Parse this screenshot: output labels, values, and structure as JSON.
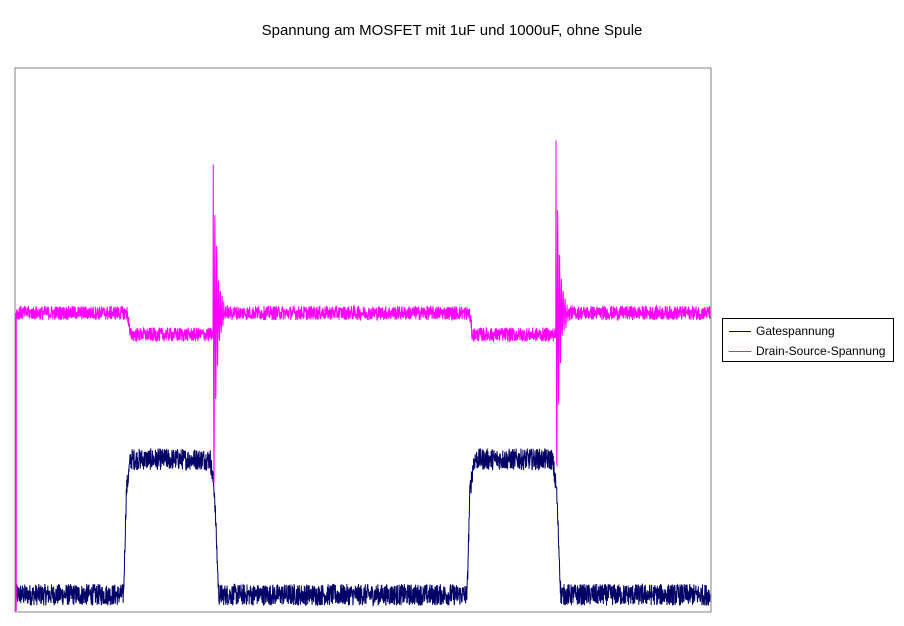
{
  "chart_data": {
    "type": "line",
    "title": "Spannung am MOSFET mit 1uF und 1000uF, ohne Spule",
    "xlabel": "",
    "ylabel": "",
    "xlim": [
      0,
      1000
    ],
    "ylim": [
      0,
      100
    ],
    "grid": false,
    "axes_visible": false,
    "legend_position": "right",
    "series": [
      {
        "name": "Gatespannung",
        "color": "#000066",
        "noise": 2.0,
        "points": [
          [
            0,
            3
          ],
          [
            155,
            3
          ],
          [
            159,
            22
          ],
          [
            165,
            28
          ],
          [
            172,
            28
          ],
          [
            280,
            28
          ],
          [
            286,
            22
          ],
          [
            292,
            3
          ],
          [
            650,
            3
          ],
          [
            654,
            22
          ],
          [
            660,
            28
          ],
          [
            667,
            28
          ],
          [
            773,
            28
          ],
          [
            779,
            22
          ],
          [
            785,
            3
          ],
          [
            1000,
            3
          ]
        ]
      },
      {
        "name": "Drain-Source-Spannung",
        "color": "#ff00ff",
        "noise": 1.3,
        "points": [
          [
            0,
            55
          ],
          [
            160,
            55
          ],
          [
            163,
            53
          ],
          [
            164,
            51
          ],
          [
            168,
            51
          ],
          [
            285,
            51
          ],
          [
            289,
            55
          ],
          [
            653,
            55
          ],
          [
            656,
            53
          ],
          [
            657,
            51
          ],
          [
            661,
            51
          ],
          [
            778,
            51
          ],
          [
            782,
            55
          ],
          [
            1000,
            55
          ]
        ],
        "spikes": [
          {
            "x": 284,
            "peak": 91,
            "decay": 14,
            "period": 2.6,
            "length": 60
          },
          {
            "x": 778,
            "peak": 91,
            "decay": 14,
            "period": 2.6,
            "length": 60
          }
        ],
        "start_spike": {
          "x": 0,
          "from": 0,
          "to": 55
        }
      }
    ]
  }
}
